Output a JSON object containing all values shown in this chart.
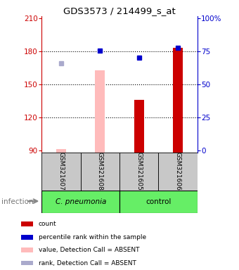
{
  "title": "GDS3573 / 214499_s_at",
  "samples": [
    "GSM321607",
    "GSM321608",
    "GSM321605",
    "GSM321606"
  ],
  "bar_values_pink": [
    91,
    163,
    null,
    null
  ],
  "bar_values_red": [
    null,
    null,
    136,
    183
  ],
  "dot_blue": [
    null,
    181,
    174,
    183
  ],
  "dot_lightblue": [
    169,
    null,
    null,
    null
  ],
  "ylim": [
    88,
    212
  ],
  "yticks_left": [
    90,
    120,
    150,
    180,
    210
  ],
  "yticks_right_pos": [
    90,
    120,
    150,
    180,
    210
  ],
  "yticks_right_labels": [
    "0",
    "25",
    "50",
    "75",
    "100%"
  ],
  "gridlines": [
    120,
    150,
    180
  ],
  "left_color": "#cc0000",
  "right_color": "#0000cc",
  "bar_width": 0.25,
  "group1_name": "C. pneumonia",
  "group2_name": "control",
  "group_color": "#66ee66",
  "sample_box_color": "#c8c8c8",
  "legend_items": [
    {
      "color": "#cc0000",
      "label": "count"
    },
    {
      "color": "#0000cc",
      "label": "percentile rank within the sample"
    },
    {
      "color": "#ffbbbb",
      "label": "value, Detection Call = ABSENT"
    },
    {
      "color": "#aaaacc",
      "label": "rank, Detection Call = ABSENT"
    }
  ]
}
